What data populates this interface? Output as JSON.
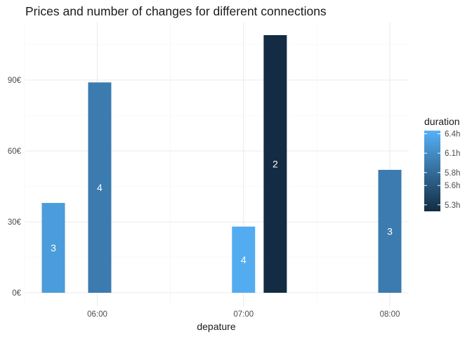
{
  "chart_data": {
    "type": "bar",
    "title": "Prices and number of changes for different connections",
    "xlabel": "depature",
    "ylabel": "",
    "x_ticks": [
      "06:00",
      "07:00",
      "08:00"
    ],
    "y_ticks": [
      "0€",
      "30€",
      "60€",
      "90€"
    ],
    "y_tick_values": [
      0,
      30,
      60,
      90
    ],
    "ylim": [
      0,
      112
    ],
    "xlim_minutes": [
      318,
      501
    ],
    "x_tick_minutes": [
      360,
      420,
      480
    ],
    "bars": [
      {
        "departure": "05:42",
        "price": 38,
        "changes": "3",
        "duration_h": 6.25
      },
      {
        "departure": "06:01",
        "price": 89,
        "changes": "4",
        "duration_h": 5.95
      },
      {
        "departure": "07:00",
        "price": 28,
        "changes": "4",
        "duration_h": 6.4
      },
      {
        "departure": "07:13",
        "price": 109,
        "changes": "2",
        "duration_h": 5.2
      },
      {
        "departure": "08:00",
        "price": 52,
        "changes": "3",
        "duration_h": 5.95
      }
    ],
    "legend": {
      "title": "duration",
      "labels": [
        "6.4h",
        "6.1h",
        "5.8h",
        "5.6h",
        "5.3h"
      ],
      "label_values": [
        6.4,
        6.1,
        5.8,
        5.6,
        5.3
      ],
      "range": [
        5.2,
        6.45
      ],
      "colors": {
        "low": "#132b43",
        "high": "#56b1f7"
      },
      "position": "right"
    },
    "grid": true
  }
}
